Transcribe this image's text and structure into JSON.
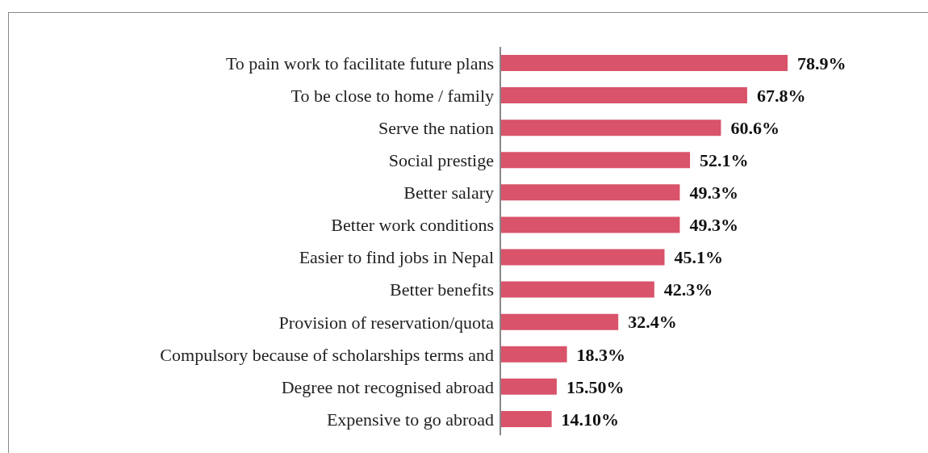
{
  "chart_data": {
    "type": "bar",
    "orientation": "horizontal",
    "categories": [
      "To pain work to facilitate future plans",
      "To be close to home / family",
      "Serve the nation",
      "Social prestige",
      "Better salary",
      "Better work conditions",
      "Easier to find jobs in Nepal",
      "Better benefits",
      "Provision of reservation/quota",
      "Compulsory because of scholarships terms and",
      "Degree not recognised abroad",
      "Expensive to go abroad"
    ],
    "values": [
      78.9,
      67.8,
      60.6,
      52.1,
      49.3,
      49.3,
      45.1,
      42.3,
      32.4,
      18.3,
      15.5,
      14.1
    ],
    "value_labels": [
      "78.9%",
      "67.8%",
      "60.6%",
      "52.1%",
      "49.3%",
      "49.3%",
      "45.1%",
      "42.3%",
      "32.4%",
      "18.3%",
      "15.50%",
      "14.10%"
    ],
    "color": "#d9536a",
    "grid": false,
    "legend": false
  }
}
